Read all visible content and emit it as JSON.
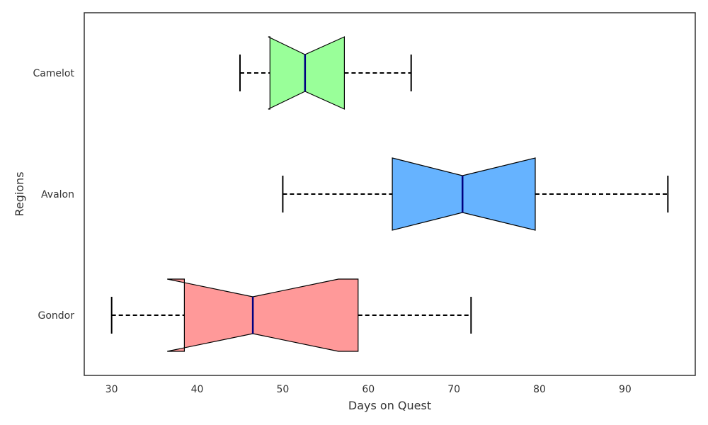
{
  "chart_data": {
    "type": "boxplot",
    "orientation": "horizontal",
    "notched": true,
    "xlabel": "Days on Quest",
    "ylabel": "Regions",
    "xlim": [
      26.8,
      98.2
    ],
    "xticks": [
      30,
      40,
      50,
      60,
      70,
      80,
      90
    ],
    "grid": false,
    "categories": [
      "Gondor",
      "Avalon",
      "Camelot"
    ],
    "boxes": [
      {
        "name": "Gondor",
        "whisker_low": 30,
        "q1": 38.5,
        "median": 46.5,
        "q3": 58.8,
        "whisker_high": 72,
        "notch_low": 36.5,
        "notch_high": 56.5,
        "color": "#ff9999"
      },
      {
        "name": "Avalon",
        "whisker_low": 50,
        "q1": 62.8,
        "median": 71.0,
        "q3": 79.5,
        "whisker_high": 95,
        "notch_low": 62.8,
        "notch_high": 79.5,
        "color": "#66b3ff"
      },
      {
        "name": "Camelot",
        "whisker_low": 45,
        "q1": 48.5,
        "median": 52.6,
        "q3": 57.2,
        "whisker_high": 65,
        "notch_low": 48.3,
        "notch_high": 57.2,
        "color": "#99ff99"
      }
    ],
    "median_color": "#000080",
    "whisker_style": "dashed"
  }
}
